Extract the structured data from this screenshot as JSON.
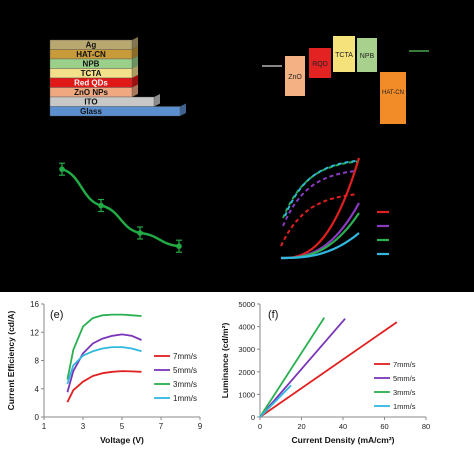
{
  "device_stack": {
    "layers": [
      {
        "label": "Ag",
        "color": "#b8a870"
      },
      {
        "label": "HAT-CN",
        "color": "#c79a3a"
      },
      {
        "label": "NPB",
        "color": "#9bd08a"
      },
      {
        "label": "TCTA",
        "color": "#f3e08a"
      },
      {
        "label": "Red QDs",
        "color": "#e01818"
      },
      {
        "label": "ZnO NPs",
        "color": "#f0a880"
      },
      {
        "label": "ITO",
        "color": "#c8c8c8"
      },
      {
        "label": "Glass",
        "color": "#5b8fd0"
      }
    ]
  },
  "energy_diagram": {
    "blocks": [
      {
        "label": "ZnO",
        "color": "#f4b183"
      },
      {
        "label": "RQD",
        "color": "#e32222"
      },
      {
        "label": "TCTA",
        "color": "#f6e27a"
      },
      {
        "label": "NPB",
        "color": "#a9d18e"
      },
      {
        "label": "HAT-CN",
        "color": "#f28c28"
      }
    ]
  },
  "chart_data": [
    {
      "type": "line",
      "panel": "c",
      "color": "#22aa44",
      "x": [
        0,
        1,
        2,
        3
      ],
      "y": [
        0.88,
        0.55,
        0.3,
        0.18
      ],
      "error_bars": true
    },
    {
      "type": "line",
      "panel": "d",
      "legend_colors": [
        "#e02020",
        "#8a3ac0",
        "#2ab050",
        "#30b8e0"
      ]
    },
    {
      "type": "line",
      "panel": "e",
      "panel_label": "(e)",
      "xlabel": "Voltage (V)",
      "ylabel": "Current Efficiency (cd/A)",
      "xlim": [
        1,
        9
      ],
      "ylim": [
        0,
        16
      ],
      "xticks": [
        "1",
        "3",
        "5",
        "7",
        "9"
      ],
      "yticks": [
        "0",
        "4",
        "8",
        "12",
        "16"
      ],
      "legend_position": "right",
      "series": [
        {
          "name": "7mm/s",
          "color": "#e02020",
          "x": [
            2.2,
            2.5,
            3,
            3.5,
            4,
            4.5,
            5,
            5.5,
            6
          ],
          "y": [
            2.1,
            3.8,
            5.0,
            5.8,
            6.2,
            6.4,
            6.5,
            6.45,
            6.4
          ]
        },
        {
          "name": "5mm/s",
          "color": "#7a35b8",
          "x": [
            2.2,
            2.5,
            3,
            3.5,
            4,
            4.5,
            5,
            5.5,
            6
          ],
          "y": [
            3.5,
            6.5,
            9.0,
            10.4,
            11.1,
            11.5,
            11.7,
            11.5,
            10.9
          ]
        },
        {
          "name": "3mm/s",
          "color": "#2ab050",
          "x": [
            2.2,
            2.5,
            3,
            3.5,
            4,
            4.5,
            5,
            5.5,
            6
          ],
          "y": [
            5.3,
            9.5,
            12.8,
            14.0,
            14.4,
            14.5,
            14.5,
            14.4,
            14.3
          ]
        },
        {
          "name": "1mm/s",
          "color": "#30b8e0",
          "x": [
            2.2,
            2.5,
            3,
            3.5,
            4,
            4.5,
            5,
            5.5,
            6
          ],
          "y": [
            4.7,
            7.3,
            8.7,
            9.3,
            9.7,
            9.9,
            9.9,
            9.7,
            9.3
          ]
        }
      ]
    },
    {
      "type": "line",
      "panel": "f",
      "panel_label": "(f)",
      "xlabel": "Current Density (mA/cm²)",
      "ylabel": "Luminance (cd/m²)",
      "xlim": [
        0,
        80
      ],
      "ylim": [
        0,
        5000
      ],
      "xticks": [
        "0",
        "20",
        "40",
        "60",
        "80"
      ],
      "yticks": [
        "0",
        "1000",
        "2000",
        "3000",
        "4000",
        "5000"
      ],
      "legend_position": "right",
      "series": [
        {
          "name": "7mm/s",
          "color": "#e02020",
          "x": [
            0,
            66
          ],
          "y": [
            0,
            4200
          ]
        },
        {
          "name": "5mm/s",
          "color": "#7a35b8",
          "x": [
            0,
            41
          ],
          "y": [
            0,
            4350
          ]
        },
        {
          "name": "3mm/s",
          "color": "#2ab050",
          "x": [
            0,
            31
          ],
          "y": [
            0,
            4400
          ]
        },
        {
          "name": "1mm/s",
          "color": "#30b8e0",
          "x": [
            0,
            15
          ],
          "y": [
            0,
            1400
          ]
        }
      ]
    }
  ]
}
